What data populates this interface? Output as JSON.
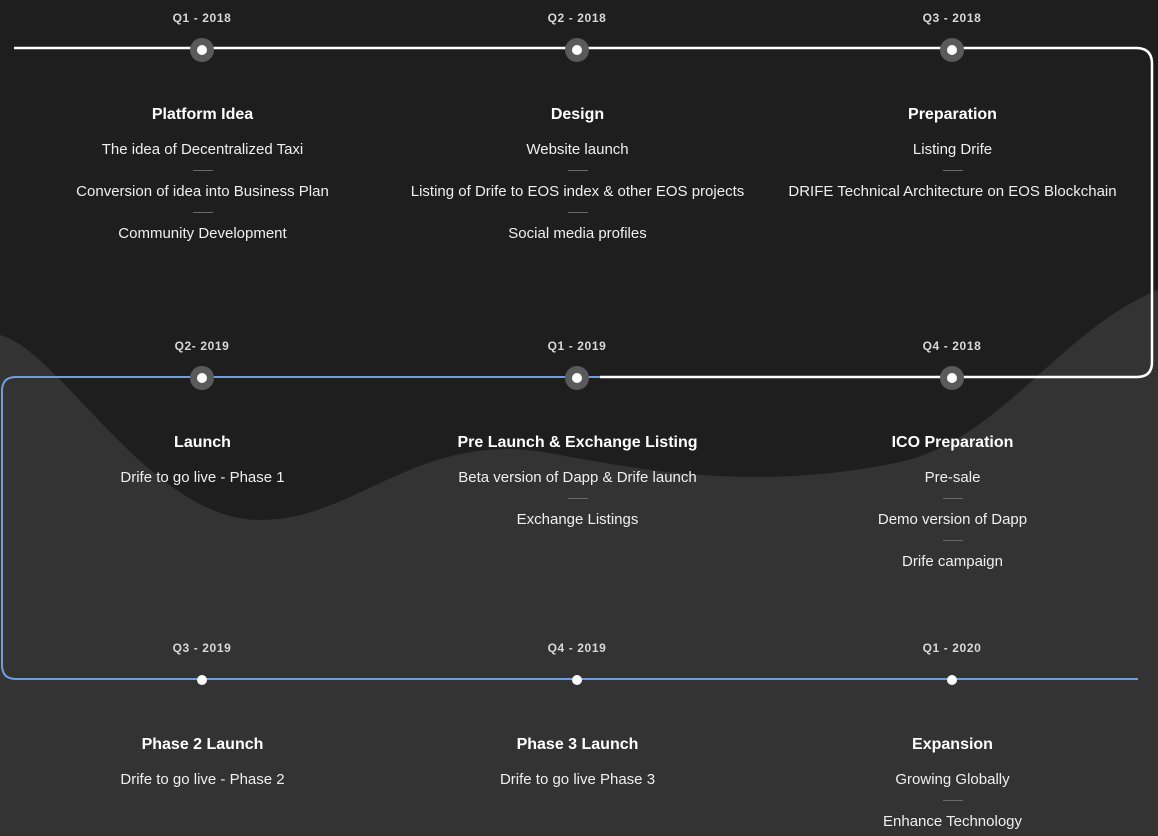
{
  "colors": {
    "background": "#333333",
    "wave_dark": "#1e1e1e",
    "track_white": "#ffffff",
    "track_blue": "#6f9ee0"
  },
  "rows": [
    {
      "milestones": [
        {
          "period": "Q1 - 2018",
          "title": "Platform Idea",
          "items": [
            "The idea of Decentralized Taxi",
            "Conversion of idea into Business Plan",
            "Community Development"
          ]
        },
        {
          "period": "Q2 - 2018",
          "title": "Design",
          "items": [
            "Website launch",
            "Listing of Drife to EOS index & other EOS projects",
            "Social media profiles"
          ]
        },
        {
          "period": "Q3 - 2018",
          "title": "Preparation",
          "items": [
            "Listing Drife",
            "DRIFE Technical Architecture on EOS Blockchain"
          ]
        }
      ]
    },
    {
      "milestones": [
        {
          "period": "Q2- 2019",
          "title": "Launch",
          "items": [
            "Drife to go live - Phase 1"
          ]
        },
        {
          "period": "Q1 - 2019",
          "title": "Pre Launch & Exchange Listing",
          "items": [
            "Beta version of Dapp & Drife launch",
            "Exchange Listings"
          ]
        },
        {
          "period": "Q4 - 2018",
          "title": "ICO Preparation",
          "items": [
            "Pre-sale",
            "Demo version of Dapp",
            "Drife campaign"
          ]
        }
      ]
    },
    {
      "milestones": [
        {
          "period": "Q3 - 2019",
          "title": "Phase 2 Launch",
          "items": [
            "Drife to go live - Phase 2"
          ]
        },
        {
          "period": "Q4 - 2019",
          "title": "Phase 3 Launch",
          "items": [
            "Drife to go live Phase 3"
          ]
        },
        {
          "period": "Q1 - 2020",
          "title": "Expansion",
          "items": [
            "Growing Globally",
            "Enhance Technology"
          ]
        }
      ]
    }
  ]
}
